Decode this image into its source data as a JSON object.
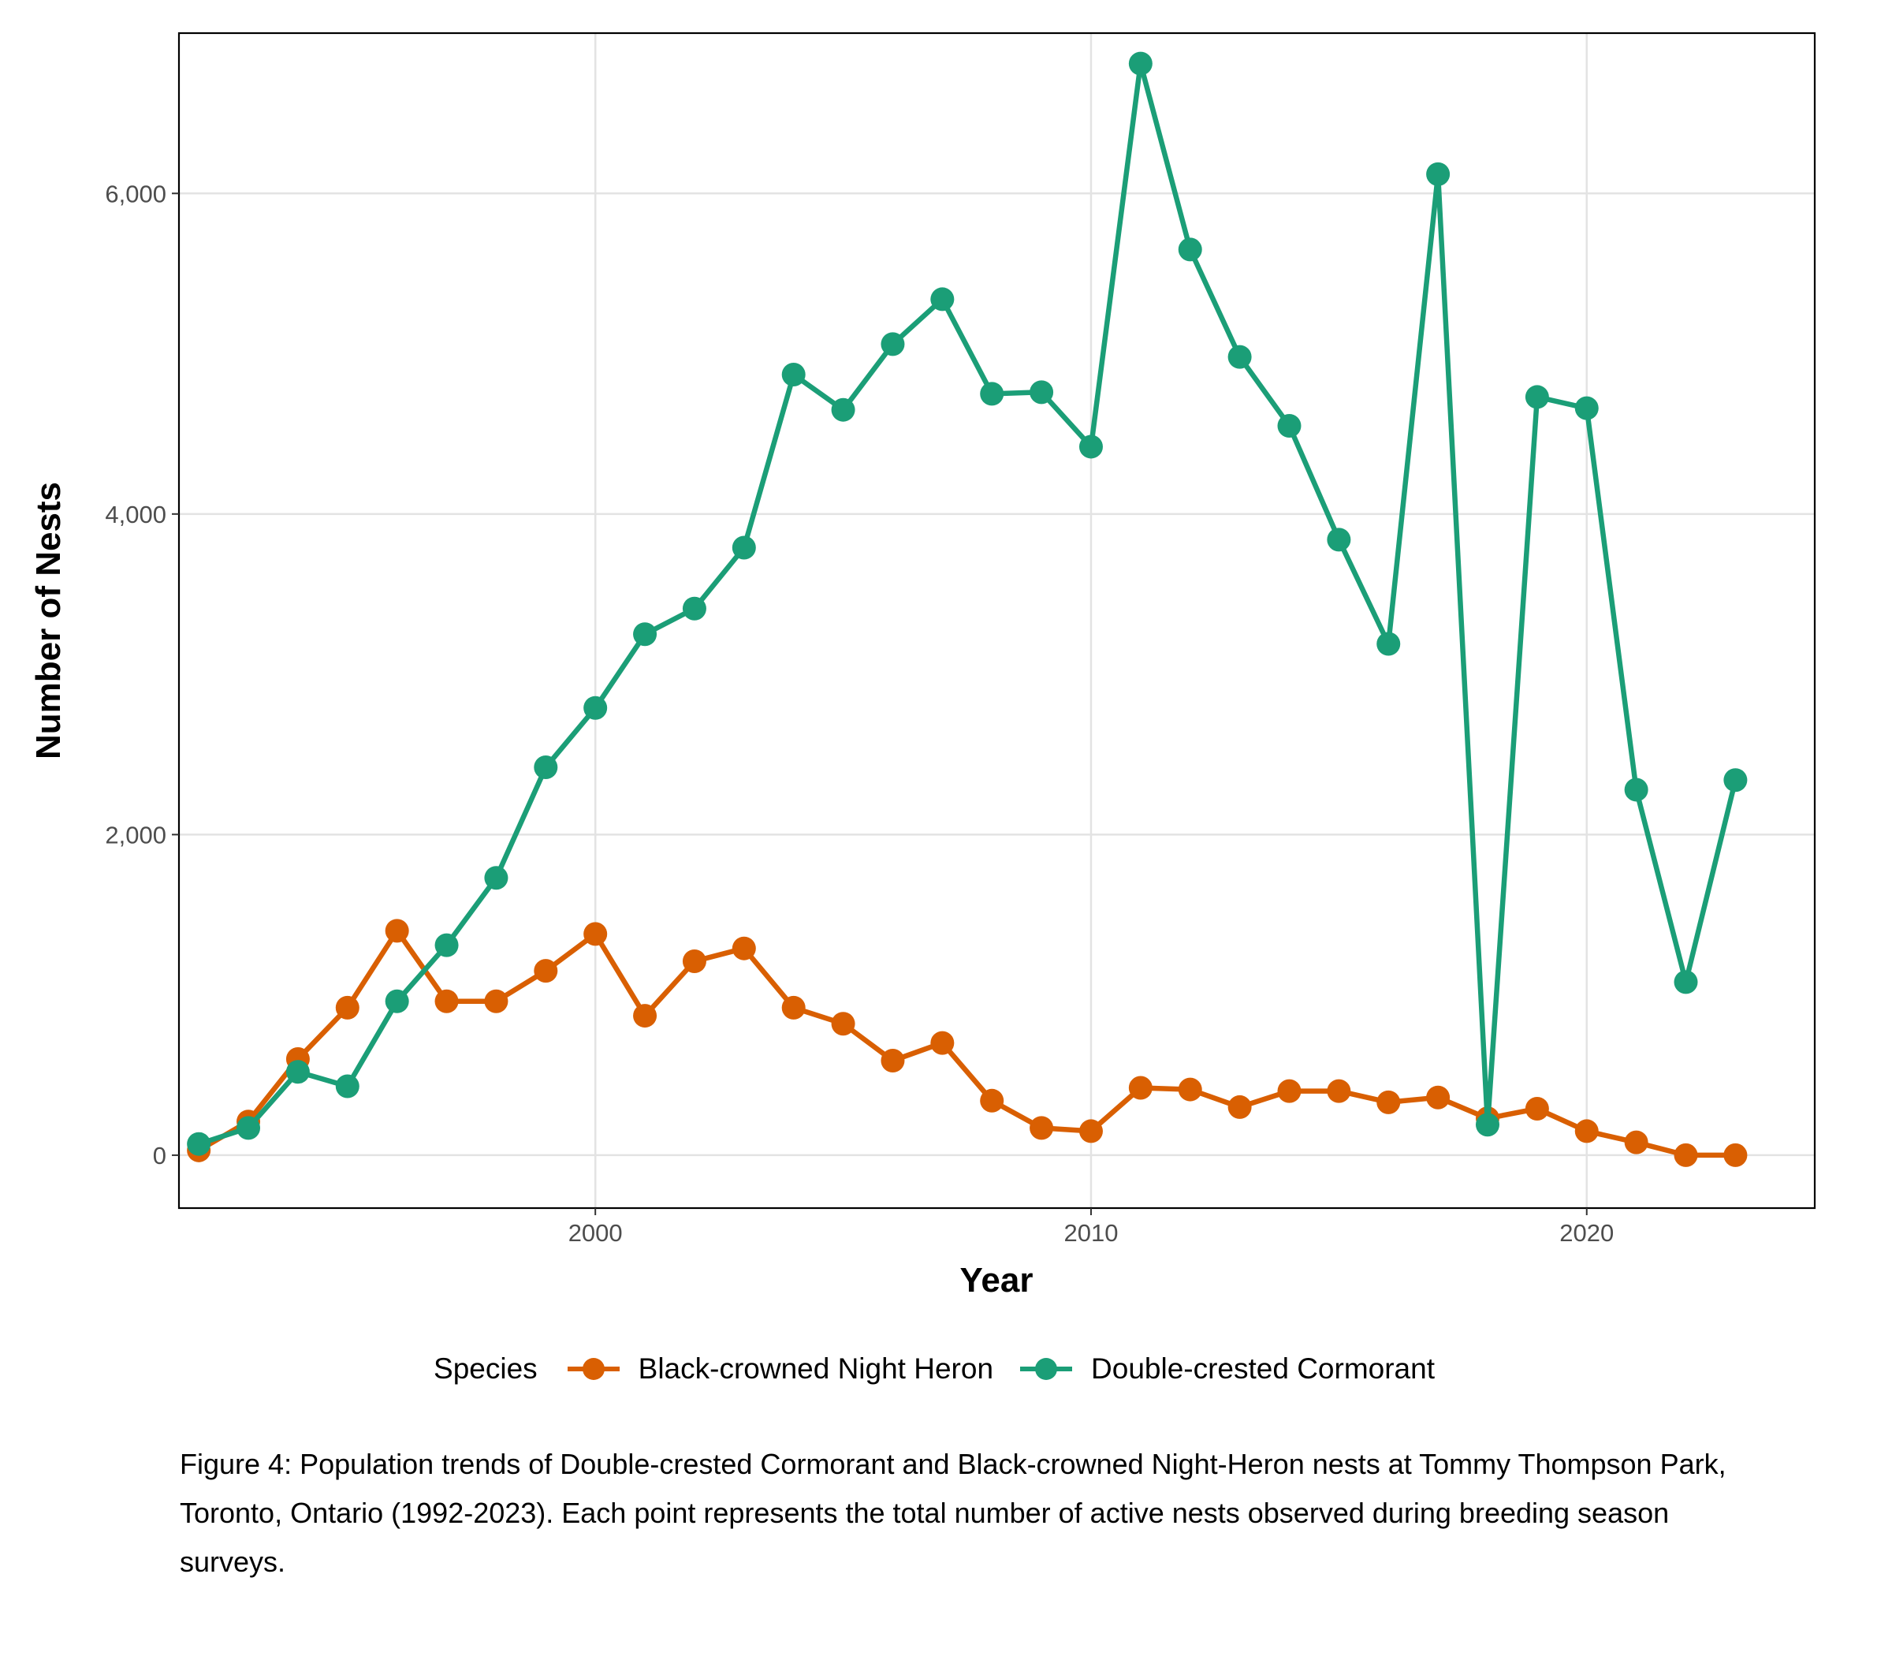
{
  "chart_data": {
    "type": "line",
    "xlabel": "Year",
    "ylabel": "Number of Nests",
    "xlim": [
      1991.6,
      2024.6
    ],
    "ylim": [
      -330,
      7000
    ],
    "x_ticks": [
      2000,
      2010,
      2020
    ],
    "y_ticks": [
      0,
      2000,
      4000,
      6000
    ],
    "y_tick_labels": [
      "0",
      "2,000",
      "4,000",
      "6,000"
    ],
    "grid": true,
    "legend_position": "bottom",
    "legend_title": "Species",
    "x": [
      1992,
      1993,
      1994,
      1995,
      1996,
      1997,
      1998,
      1999,
      2000,
      2001,
      2002,
      2003,
      2004,
      2005,
      2006,
      2007,
      2008,
      2009,
      2010,
      2011,
      2012,
      2013,
      2014,
      2015,
      2016,
      2017,
      2018,
      2019,
      2020,
      2021,
      2022,
      2023
    ],
    "series": [
      {
        "name": "Black-crowned Night Heron",
        "color": "#D95F02",
        "values": [
          30,
          210,
          600,
          920,
          1400,
          960,
          960,
          1150,
          1380,
          870,
          1210,
          1290,
          920,
          820,
          590,
          700,
          340,
          170,
          150,
          420,
          410,
          300,
          400,
          400,
          330,
          360,
          230,
          290,
          150,
          80,
          0,
          0
        ]
      },
      {
        "name": "Double-crested Cormorant",
        "color": "#1B9E77",
        "values": [
          70,
          170,
          520,
          430,
          960,
          1310,
          1730,
          2420,
          2790,
          3250,
          3410,
          3790,
          4870,
          4650,
          5060,
          5340,
          4750,
          4760,
          4420,
          6810,
          5650,
          4980,
          4550,
          3840,
          3190,
          6120,
          190,
          4730,
          4660,
          2280,
          1080,
          2340
        ]
      }
    ]
  },
  "caption": "Figure 4: Population trends of Double-crested Cormorant and Black-crowned Night-Heron nests at Tommy Thompson Park, Toronto, Ontario (1992-2023). Each point represents the total number of active nests observed during breeding season surveys."
}
